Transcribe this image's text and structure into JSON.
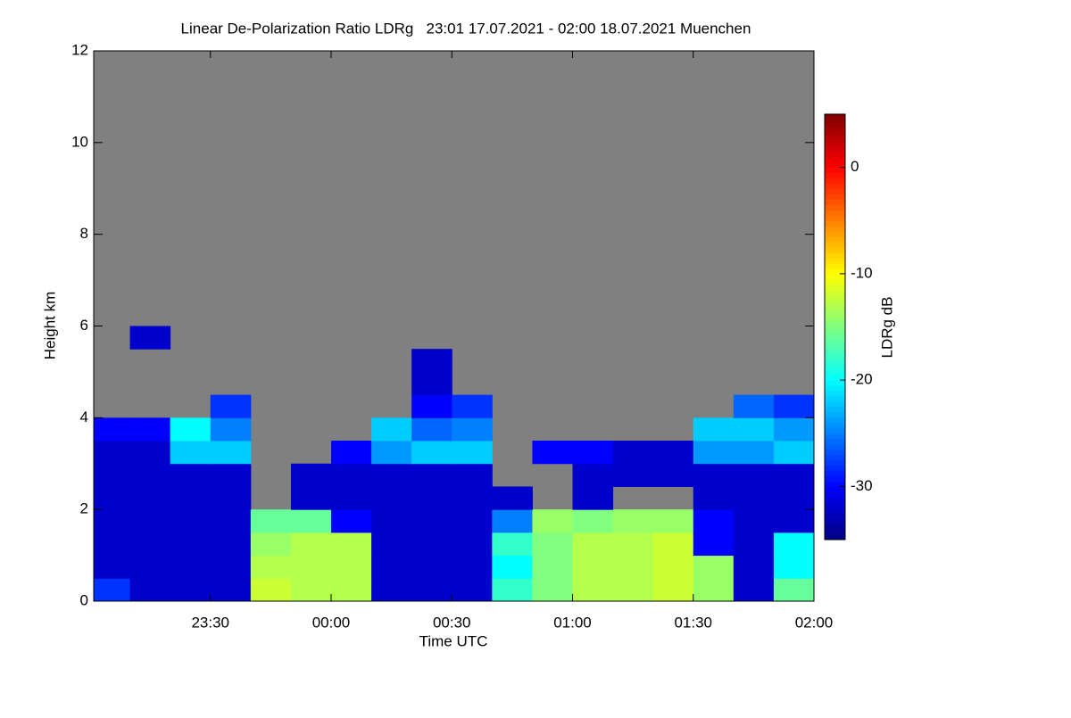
{
  "chart_data": {
    "type": "heatmap",
    "title": "Linear De-Polarization Ratio LDRg   23:01 17.07.2021 - 02:00 18.07.2021 Muenchen",
    "xlabel": "Time UTC",
    "ylabel": "Height km",
    "colorbar_label": "LDRg dB",
    "xlim": [
      1381,
      1560
    ],
    "xticks": [
      {
        "value": 1410,
        "label": "23:30"
      },
      {
        "value": 1440,
        "label": "00:00"
      },
      {
        "value": 1470,
        "label": "00:30"
      },
      {
        "value": 1500,
        "label": "01:00"
      },
      {
        "value": 1530,
        "label": "01:30"
      },
      {
        "value": 1560,
        "label": "02:00"
      }
    ],
    "ylim": [
      0,
      12
    ],
    "yticks": [
      0,
      2,
      4,
      6,
      8,
      10,
      12
    ],
    "clim": [
      -35,
      5
    ],
    "cticks": [
      0,
      -10,
      -20,
      -30
    ],
    "colormap": "jet",
    "background": "#808080",
    "xbins": [
      1380,
      1390,
      1400,
      1410,
      1420,
      1430,
      1440,
      1450,
      1460,
      1470,
      1480,
      1490,
      1500,
      1510,
      1520,
      1530,
      1540,
      1550,
      1560
    ],
    "ybins": [
      0,
      0.5,
      1,
      1.5,
      2,
      2.5,
      3,
      3.5,
      4,
      4.5,
      5,
      5.5,
      6
    ],
    "z": [
      [
        -28,
        -32,
        -32,
        -32,
        -12,
        -13,
        -13,
        -32,
        -32,
        -32,
        -18,
        -15,
        -13,
        -13,
        -12,
        -14,
        -32,
        -16
      ],
      [
        -32,
        -32,
        -32,
        -32,
        -13,
        -13,
        -13,
        -32,
        -32,
        -32,
        -20,
        -15,
        -13,
        -13,
        -12,
        -14,
        -32,
        -20
      ],
      [
        -32,
        -32,
        -32,
        -32,
        -14,
        -13,
        -13,
        -32,
        -32,
        -32,
        -18,
        -15,
        -13,
        -13,
        -12,
        -30,
        -32,
        -20
      ],
      [
        -32,
        -32,
        -32,
        -32,
        -16,
        -16,
        -30,
        -32,
        -32,
        -32,
        -25,
        -14,
        -15,
        -14,
        -14,
        -30,
        -32,
        -32
      ],
      [
        -32,
        -32,
        -32,
        -32,
        null,
        -32,
        -32,
        -32,
        -32,
        -32,
        -32,
        null,
        -32,
        null,
        null,
        -32,
        -32,
        -32
      ],
      [
        -32,
        -32,
        -32,
        -32,
        null,
        -32,
        -32,
        -32,
        -32,
        -32,
        null,
        null,
        -32,
        -32,
        -32,
        -32,
        -32,
        -32
      ],
      [
        -32,
        -32,
        -22,
        -22,
        null,
        null,
        -30,
        -24,
        -22,
        -22,
        null,
        -30,
        -30,
        -32,
        -32,
        -24,
        -24,
        -22
      ],
      [
        -30,
        -30,
        -20,
        -25,
        null,
        null,
        null,
        -22,
        -26,
        -25,
        null,
        null,
        null,
        null,
        null,
        -22,
        -22,
        -24
      ],
      [
        null,
        null,
        null,
        -28,
        null,
        null,
        null,
        null,
        -30,
        -28,
        null,
        null,
        null,
        null,
        null,
        null,
        -26,
        -28
      ],
      [
        null,
        null,
        null,
        null,
        null,
        null,
        null,
        null,
        -32,
        null,
        null,
        null,
        null,
        null,
        null,
        null,
        null,
        null
      ],
      [
        null,
        null,
        null,
        null,
        null,
        null,
        null,
        null,
        -32,
        null,
        null,
        null,
        null,
        null,
        null,
        null,
        null,
        null
      ],
      [
        null,
        -32,
        null,
        null,
        null,
        null,
        null,
        null,
        null,
        null,
        null,
        null,
        null,
        null,
        null,
        null,
        null,
        null
      ]
    ]
  }
}
